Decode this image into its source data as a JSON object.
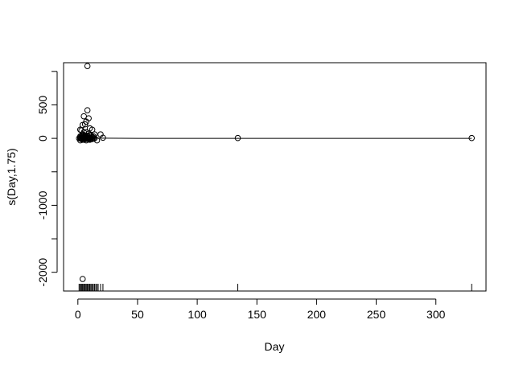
{
  "chart_data": {
    "type": "scatter",
    "title": "",
    "xlabel": "Day",
    "ylabel": "s(Day,1.75)",
    "xlim": [
      -12,
      342
    ],
    "ylim": [
      -2280,
      1130
    ],
    "x_ticks": [
      0,
      50,
      100,
      150,
      200,
      250,
      300
    ],
    "y_ticks": [
      -2000,
      -1500,
      -1000,
      -500,
      0,
      500,
      1000
    ],
    "y_tick_labels": [
      "-2000",
      "",
      "-1000",
      "",
      "0",
      "500",
      ""
    ],
    "grid": false,
    "partial_residuals": {
      "x": [
        8,
        8,
        9,
        5,
        7,
        10,
        2,
        4,
        6,
        12,
        14,
        19,
        21,
        16,
        3,
        5,
        6,
        4,
        7,
        9,
        11,
        13,
        2,
        3,
        4,
        5,
        6,
        8,
        10,
        12,
        2,
        3,
        4,
        5,
        6,
        7,
        8,
        9,
        10,
        11,
        12,
        13,
        14,
        1,
        2,
        3,
        4,
        5,
        6,
        7,
        8,
        9,
        10,
        3,
        5,
        7,
        9,
        11,
        4,
        6,
        8,
        2,
        4,
        6,
        8,
        10,
        12,
        134,
        330,
        4
      ],
      "y": [
        1080,
        420,
        300,
        330,
        250,
        150,
        130,
        200,
        210,
        130,
        60,
        60,
        10,
        -30,
        120,
        90,
        40,
        60,
        90,
        70,
        40,
        30,
        30,
        40,
        40,
        50,
        30,
        40,
        50,
        20,
        10,
        10,
        20,
        10,
        10,
        20,
        10,
        10,
        10,
        10,
        20,
        0,
        0,
        0,
        0,
        0,
        0,
        0,
        0,
        0,
        0,
        0,
        0,
        -10,
        -20,
        -30,
        -10,
        -10,
        -20,
        -10,
        -10,
        -30,
        -20,
        0,
        10,
        -20,
        -10,
        5,
        5,
        -2100
      ]
    },
    "smooth_fit": {
      "x": [
        0,
        10,
        50,
        100,
        150,
        200,
        250,
        300,
        330
      ],
      "y": [
        5,
        3,
        0,
        0,
        0,
        0,
        0,
        0,
        0
      ]
    },
    "rug_x": [
      1,
      2,
      2,
      3,
      3,
      4,
      4,
      5,
      5,
      6,
      6,
      7,
      7,
      8,
      8,
      9,
      9,
      10,
      10,
      11,
      11,
      12,
      12,
      13,
      14,
      15,
      16,
      17,
      19,
      21,
      134,
      330
    ]
  }
}
